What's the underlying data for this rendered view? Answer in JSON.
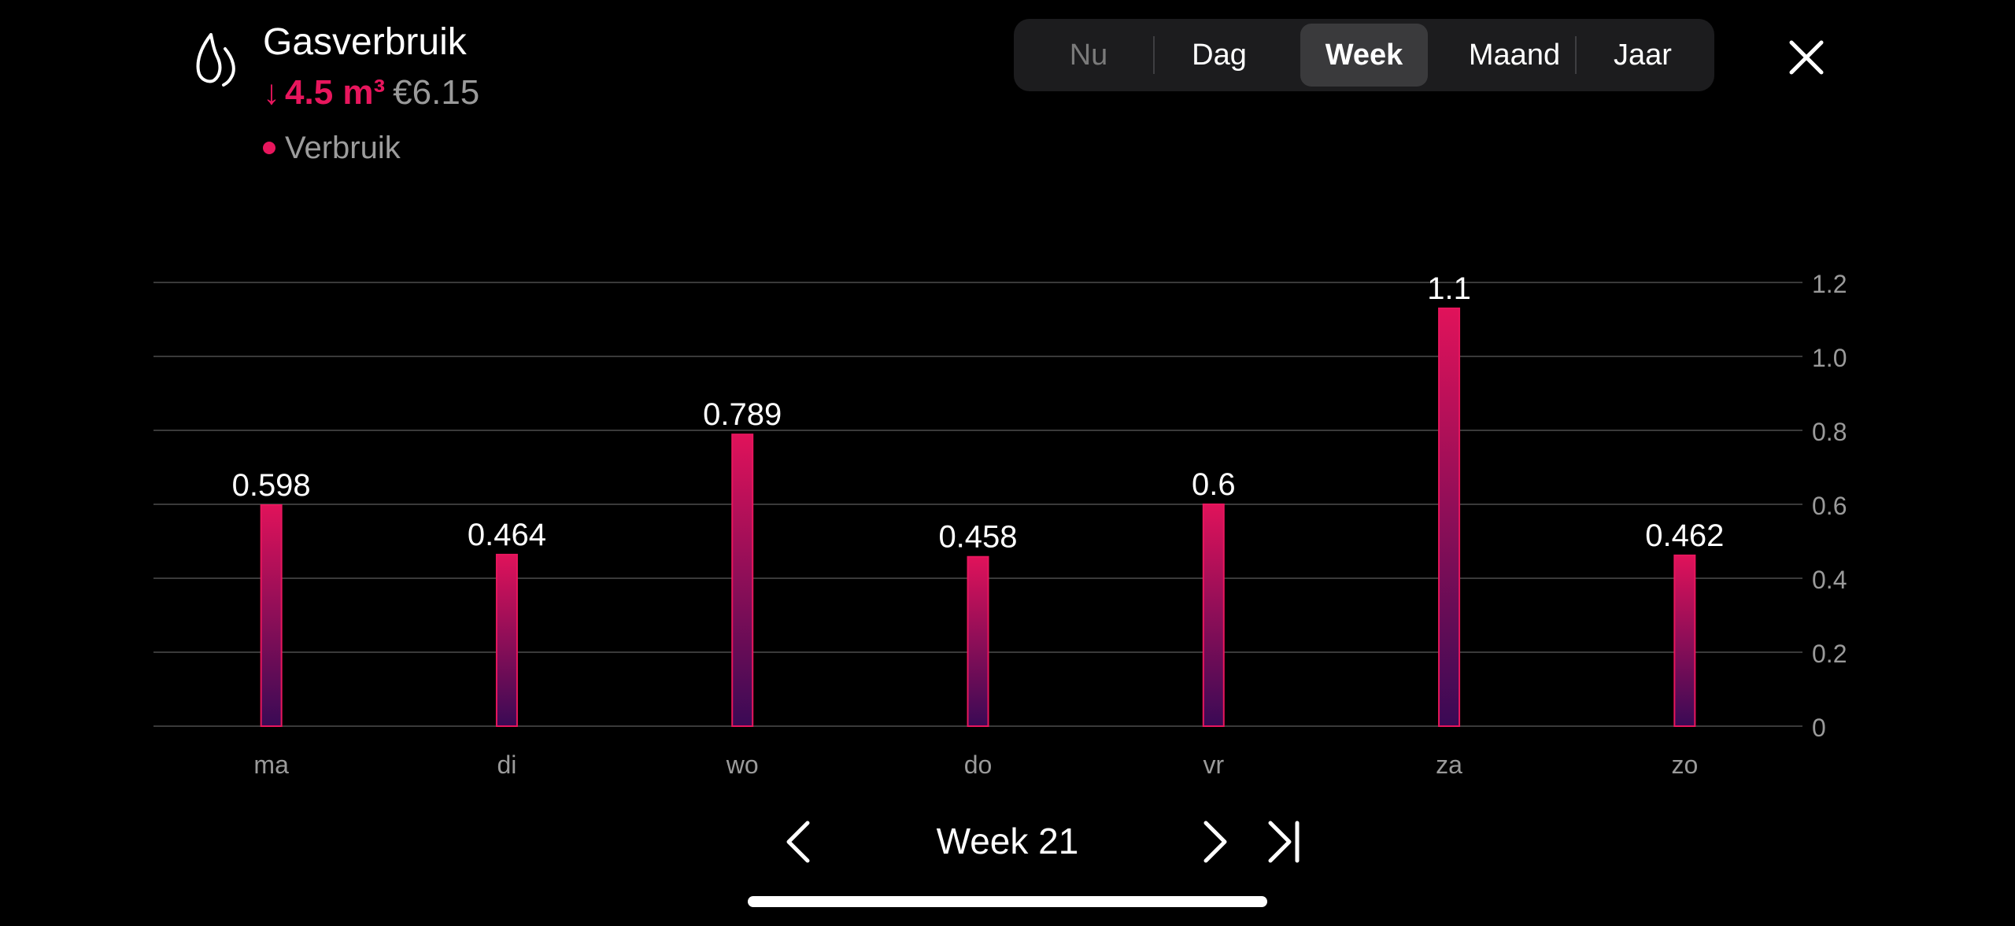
{
  "header": {
    "icon": "flame-icon",
    "title": "Gasverbruik",
    "usage_arrow": "↓",
    "usage_amount": "4.5 m³",
    "usage_cost": "€6.15",
    "legend_label": "Verbruik"
  },
  "period_tabs": {
    "now": "Nu",
    "day": "Dag",
    "week": "Week",
    "month": "Maand",
    "year": "Jaar",
    "selected": "Week"
  },
  "navigation": {
    "period_label": "Week 21"
  },
  "colors": {
    "accent": "#e8165d",
    "bar_top": "#e0125a",
    "bar_bottom": "#3a0a55",
    "grid": "#3a3a3a",
    "tick_text": "#9a9a9a"
  },
  "chart_data": {
    "type": "bar",
    "categories": [
      "ma",
      "di",
      "wo",
      "do",
      "vr",
      "za",
      "zo"
    ],
    "series": [
      {
        "name": "Verbruik",
        "values": [
          0.598,
          0.464,
          0.789,
          0.458,
          0.6,
          1.13,
          0.462
        ],
        "labels": [
          "0.598",
          "0.464",
          "0.789",
          "0.458",
          "0.6",
          "1.1",
          "0.462"
        ]
      }
    ],
    "ylim": [
      0,
      1.2
    ],
    "yticks": [
      0,
      0.2,
      0.4,
      0.6,
      0.8,
      1.0,
      1.2
    ],
    "ytick_labels": [
      "0",
      "0.2",
      "0.4",
      "0.6",
      "0.8",
      "1.0",
      "1.2"
    ],
    "y_axis_position": "right",
    "grid": true
  }
}
